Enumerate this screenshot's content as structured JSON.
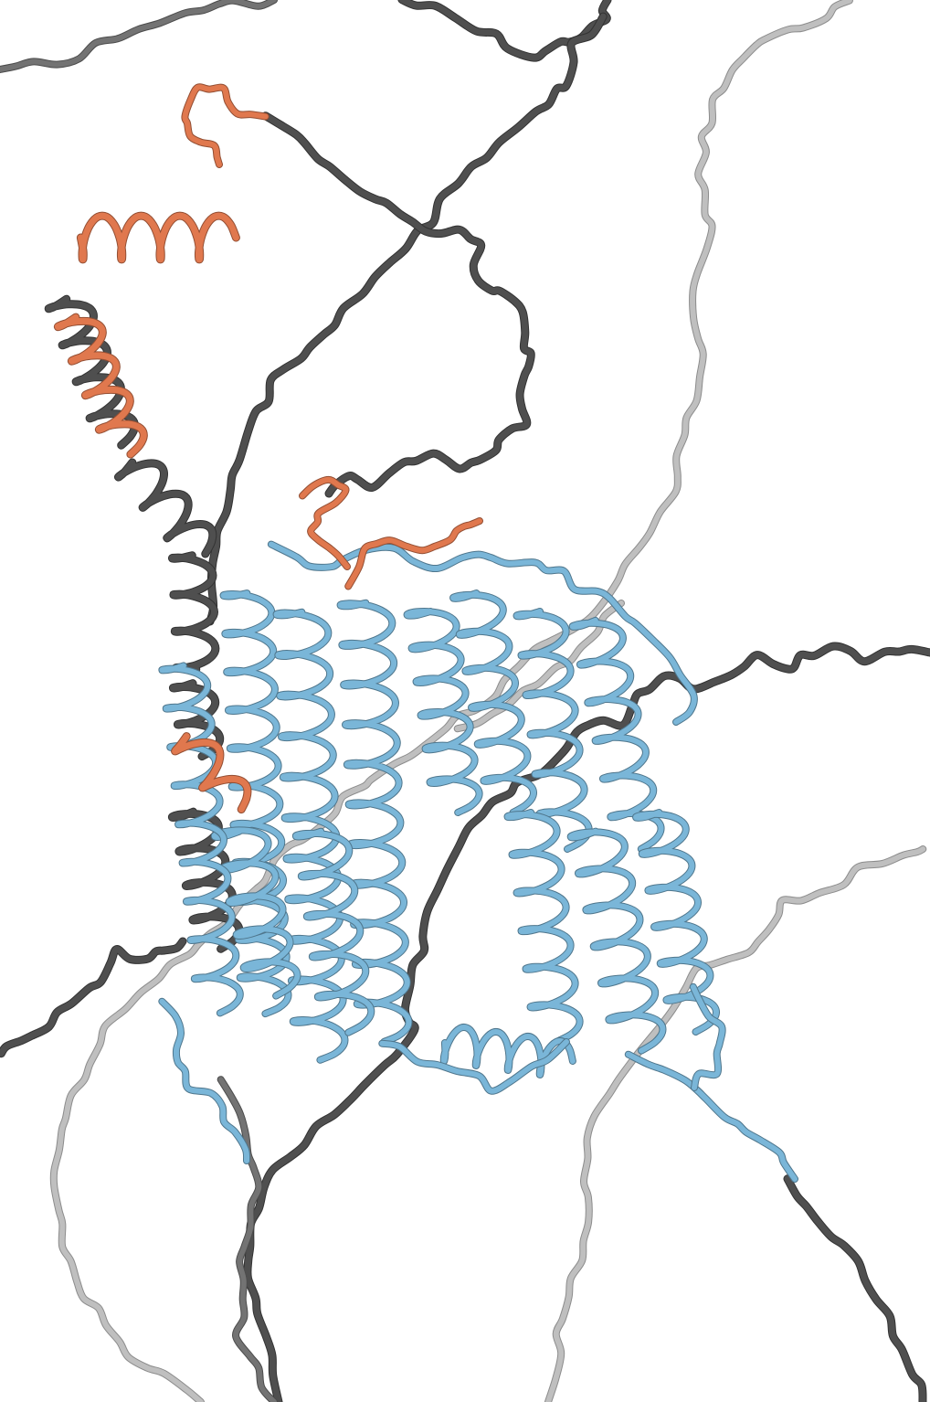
{
  "colors": {
    "background": "#ffffff",
    "disordered_dark": "#4f4f4f",
    "disordered_mid": "#737373",
    "disordered_light": "#c4c4c4",
    "helix_accent": "#e0784e",
    "transmembrane_core": "#7ab6d8"
  }
}
